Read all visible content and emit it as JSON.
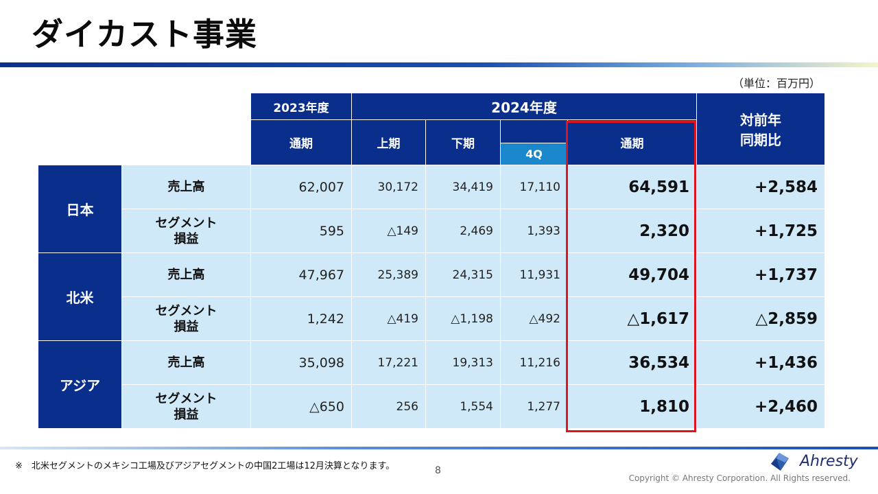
{
  "title": "ダイカスト事業",
  "unit": "（単位：百万円）",
  "headers": {
    "fy2023": "2023年度",
    "fy2024": "2024年度",
    "yoy_line1": "対前年",
    "yoy_line2": "同期比",
    "full_year_2023": "通期",
    "h1": "上期",
    "h2": "下期",
    "q4": "4Q",
    "full_year_2024": "通期"
  },
  "regions": [
    {
      "name": "日本"
    },
    {
      "name": "北米"
    },
    {
      "name": "アジア"
    }
  ],
  "item_labels": {
    "sales": "売上高",
    "segment_line1": "セグメント",
    "segment_line2": "損益"
  },
  "rows": [
    {
      "fy2023": "62,007",
      "h1": "30,172",
      "h2": "34,419",
      "q4": "17,110",
      "fy2024": "64,591",
      "yoy": "+2,584"
    },
    {
      "fy2023": "595",
      "h1": "△149",
      "h2": "2,469",
      "q4": "1,393",
      "fy2024": "2,320",
      "yoy": "+1,725"
    },
    {
      "fy2023": "47,967",
      "h1": "25,389",
      "h2": "24,315",
      "q4": "11,931",
      "fy2024": "49,704",
      "yoy": "+1,737"
    },
    {
      "fy2023": "1,242",
      "h1": "△419",
      "h2": "△1,198",
      "q4": "△492",
      "fy2024": "△1,617",
      "yoy": "△2,859"
    },
    {
      "fy2023": "35,098",
      "h1": "17,221",
      "h2": "19,313",
      "q4": "11,216",
      "fy2024": "36,534",
      "yoy": "+1,436"
    },
    {
      "fy2023": "△650",
      "h1": "256",
      "h2": "1,554",
      "q4": "1,277",
      "fy2024": "1,810",
      "yoy": "+2,460"
    }
  ],
  "footnote": "※　北米セグメントのメキシコ工場及びアジアセグメントの中国2工場は12月決算となります。",
  "page_number": "8",
  "copyright": "Copyright © Ahresty Corporation. All Rights reserved.",
  "logo_text": "Ahresty",
  "colors": {
    "header_navy": "#0a2e8c",
    "q4_blue": "#1b87cc",
    "cell_light_blue": "#cfe9f8",
    "highlight_red": "#e0141e"
  }
}
